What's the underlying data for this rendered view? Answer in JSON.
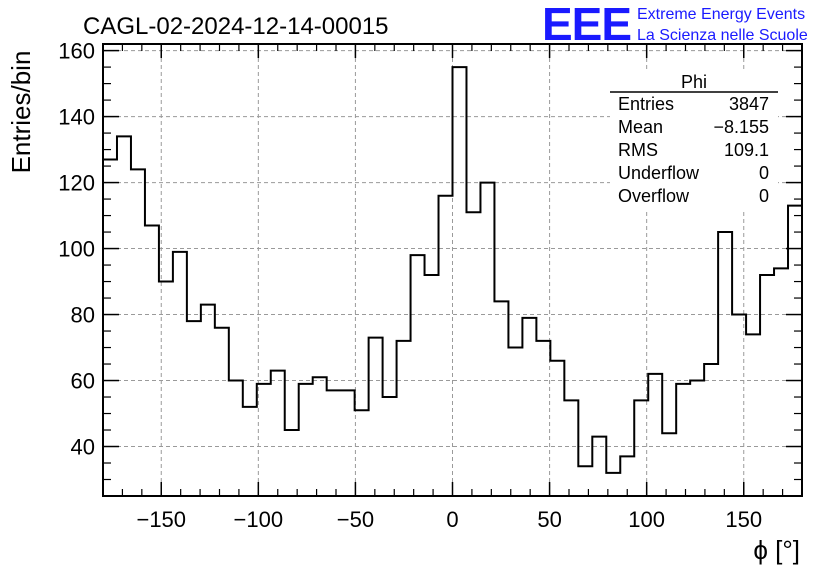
{
  "chart_data": {
    "type": "bar",
    "style": "step-histogram",
    "title": "CAGL-02-2024-12-14-00015",
    "xlabel": "ϕ [°]",
    "ylabel": "Entries/bin",
    "xlim": [
      -180,
      180
    ],
    "ylim": [
      25,
      162
    ],
    "grid": true,
    "bin_width": 9,
    "x_ticks": [
      -150,
      -100,
      -50,
      0,
      50,
      100,
      150
    ],
    "x_tick_labels": [
      "−150",
      "−100",
      "−50",
      "0",
      "50",
      "100",
      "150"
    ],
    "y_ticks": [
      40,
      60,
      80,
      100,
      120,
      140,
      160
    ],
    "y_tick_labels": [
      "40",
      "60",
      "80",
      "100",
      "120",
      "140",
      "160"
    ],
    "bin_edges_first": -180,
    "values": [
      127,
      134,
      124,
      107,
      90,
      99,
      78,
      83,
      76,
      60,
      52,
      59,
      63,
      45,
      59,
      61,
      57,
      57,
      51,
      73,
      55,
      72,
      98,
      92,
      116,
      155,
      111,
      120,
      84,
      70,
      79,
      72,
      66,
      54,
      34,
      43,
      32,
      37,
      54,
      62,
      44,
      59,
      60,
      65,
      105,
      80,
      74,
      92,
      94,
      113
    ]
  },
  "stats_box": {
    "title": "Phi",
    "rows": [
      {
        "label": "Entries",
        "value": "3847"
      },
      {
        "label": "Mean",
        "value": "−8.155"
      },
      {
        "label": "RMS",
        "value": "109.1"
      },
      {
        "label": "Underflow",
        "value": "0"
      },
      {
        "label": "Overflow",
        "value": "0"
      }
    ]
  },
  "logo": {
    "mark": "EEE",
    "line1": "Extreme Energy Events",
    "line2": "La Scienza nelle Scuole",
    "color": "#1a1aff"
  }
}
